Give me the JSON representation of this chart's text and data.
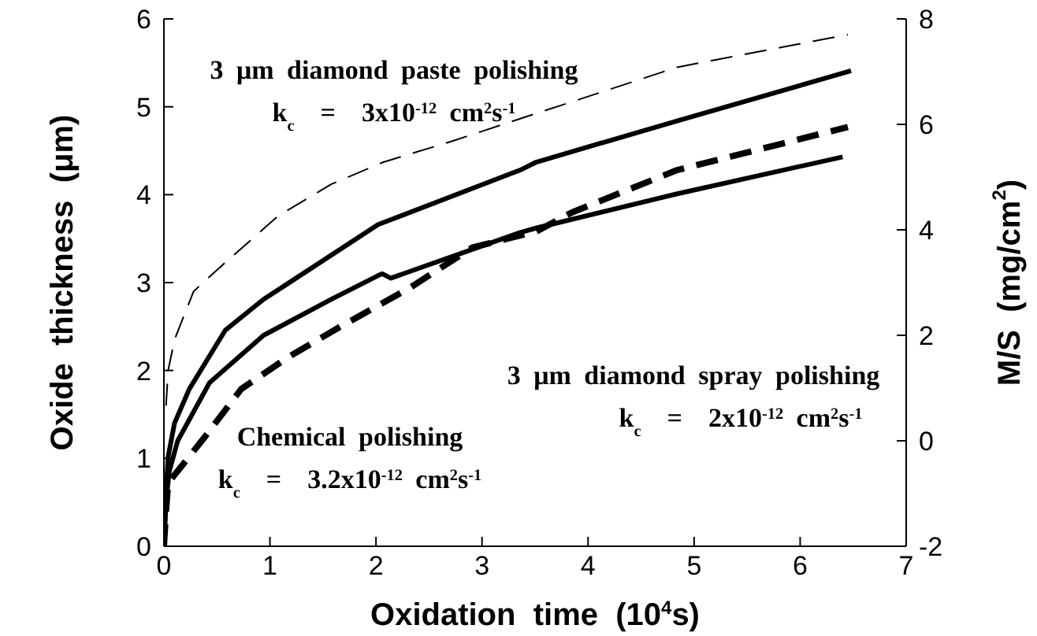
{
  "chart_data": {
    "type": "line",
    "xlabel": "Oxidation  time  (10$^{4}$s)",
    "ylabel": "Oxide  thickness  (μm)",
    "y2label": "M/S  (mg/cm$^{2}$)",
    "xlim": [
      0,
      7
    ],
    "xticks": [
      0,
      1,
      2,
      3,
      4,
      5,
      6,
      7
    ],
    "ylim": [
      0,
      6
    ],
    "yticks": [
      0,
      1,
      2,
      3,
      4,
      5,
      6
    ],
    "y2lim": [
      -2,
      8
    ],
    "y2ticks": [
      -2,
      0,
      2,
      4,
      6,
      8
    ],
    "marker": "none",
    "annotations": [
      "3 μm diamond paste polishing",
      "k$_{c}$  =  3x10$^{-12}$ cm$^{2}$s$^{-1}$",
      "3 μm diamond spray polishing",
      "k$_{c}$  =  2x10$^{-12}$ cm$^{2}$s$^{-1}$",
      "Chemical polishing",
      "k$_{c}$  =  3.2x10$^{-12}$ cm$^{2}$s$^{-1}$"
    ],
    "series": [
      {
        "color": "#000000",
        "line_style": "dashed",
        "x": [
          0.02,
          0.04,
          0.1,
          0.28,
          0.58,
          1.08,
          1.58,
          2.07,
          2.72,
          3.4,
          4.84,
          6.45
        ],
        "values": [
          1.6,
          2.0,
          2.35,
          2.9,
          3.23,
          3.76,
          4.12,
          4.37,
          4.61,
          4.88,
          5.45,
          5.82
        ]
      },
      {
        "color": "#000000",
        "line_style": "solid",
        "x": [
          0,
          0.02,
          0.04,
          0.1,
          0.24,
          0.58,
          0.94,
          1.17,
          2.02,
          3.36,
          3.51,
          4.84,
          6.48
        ],
        "values": [
          0,
          0.6,
          1.02,
          1.4,
          1.79,
          2.46,
          2.81,
          2.99,
          3.66,
          4.28,
          4.37,
          4.84,
          5.41
        ]
      },
      {
        "color": "#000000",
        "line_style": "solid",
        "x": [
          0,
          0.02,
          0.05,
          0.13,
          0.43,
          0.94,
          1.58,
          2.02,
          2.06,
          2.14,
          3.36,
          3.51,
          4.84,
          6.4
        ],
        "values": [
          0,
          0.5,
          0.85,
          1.2,
          1.86,
          2.4,
          2.81,
          3.08,
          3.1,
          3.05,
          3.57,
          3.62,
          4.01,
          4.43
        ]
      },
      {
        "color": "#000000",
        "line_style": "dashed",
        "x": [
          0,
          0.02,
          0.04,
          0.39,
          0.73,
          1.17,
          1.68,
          2.32,
          2.91,
          3.51,
          3.85,
          4.84,
          6.45
        ],
        "values": [
          0,
          0.4,
          0.72,
          1.25,
          1.79,
          2.15,
          2.51,
          2.94,
          3.4,
          3.58,
          3.8,
          4.28,
          4.77
        ]
      }
    ]
  }
}
